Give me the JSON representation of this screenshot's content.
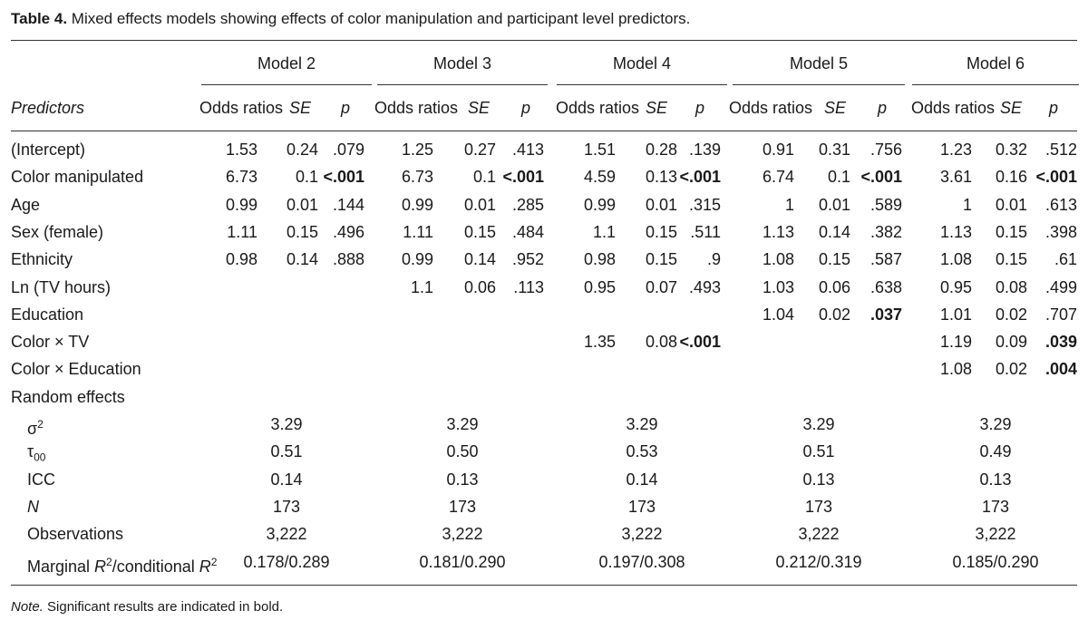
{
  "caption": {
    "label": "Table 4.",
    "text": "Mixed effects models showing effects of color manipulation and participant level predictors."
  },
  "models": [
    "Model 2",
    "Model 3",
    "Model 4",
    "Model 5",
    "Model 6"
  ],
  "predictors_header": "Predictors",
  "subheaders": [
    "Odds ratios",
    "SE",
    "p"
  ],
  "rows": [
    {
      "label": "(Intercept)",
      "values": [
        [
          "1.53",
          "0.24",
          ".079"
        ],
        [
          "1.25",
          "0.27",
          ".413"
        ],
        [
          "1.51",
          "0.28",
          ".139"
        ],
        [
          "0.91",
          "0.31",
          ".756"
        ],
        [
          "1.23",
          "0.32",
          ".512"
        ]
      ],
      "sig": [
        false,
        false,
        false,
        false,
        false
      ]
    },
    {
      "label": "Color manipulated",
      "values": [
        [
          "6.73",
          "0.1",
          "<.001"
        ],
        [
          "6.73",
          "0.1",
          "<.001"
        ],
        [
          "4.59",
          "0.13",
          "<.001"
        ],
        [
          "6.74",
          "0.1",
          "<.001"
        ],
        [
          "3.61",
          "0.16",
          "<.001"
        ]
      ],
      "sig": [
        true,
        true,
        true,
        true,
        true
      ]
    },
    {
      "label": "Age",
      "values": [
        [
          "0.99",
          "0.01",
          ".144"
        ],
        [
          "0.99",
          "0.01",
          ".285"
        ],
        [
          "0.99",
          "0.01",
          ".315"
        ],
        [
          "1",
          "0.01",
          ".589"
        ],
        [
          "1",
          "0.01",
          ".613"
        ]
      ],
      "sig": [
        false,
        false,
        false,
        false,
        false
      ]
    },
    {
      "label": "Sex (female)",
      "values": [
        [
          "1.11",
          "0.15",
          ".496"
        ],
        [
          "1.11",
          "0.15",
          ".484"
        ],
        [
          "1.1",
          "0.15",
          ".511"
        ],
        [
          "1.13",
          "0.14",
          ".382"
        ],
        [
          "1.13",
          "0.15",
          ".398"
        ]
      ],
      "sig": [
        false,
        false,
        false,
        false,
        false
      ]
    },
    {
      "label": "Ethnicity",
      "values": [
        [
          "0.98",
          "0.14",
          ".888"
        ],
        [
          "0.99",
          "0.14",
          ".952"
        ],
        [
          "0.98",
          "0.15",
          ".9"
        ],
        [
          "1.08",
          "0.15",
          ".587"
        ],
        [
          "1.08",
          "0.15",
          ".61"
        ]
      ],
      "sig": [
        false,
        false,
        false,
        false,
        false
      ]
    },
    {
      "label": "Ln (TV hours)",
      "values": [
        null,
        [
          "1.1",
          "0.06",
          ".113"
        ],
        [
          "0.95",
          "0.07",
          ".493"
        ],
        [
          "1.03",
          "0.06",
          ".638"
        ],
        [
          "0.95",
          "0.08",
          ".499"
        ]
      ],
      "sig": [
        false,
        false,
        false,
        false,
        false
      ]
    },
    {
      "label": "Education",
      "values": [
        null,
        null,
        null,
        [
          "1.04",
          "0.02",
          ".037"
        ],
        [
          "1.01",
          "0.02",
          ".707"
        ]
      ],
      "sig": [
        false,
        false,
        false,
        true,
        false
      ]
    },
    {
      "label": "Color × TV",
      "values": [
        null,
        null,
        [
          "1.35",
          "0.08",
          "<.001"
        ],
        null,
        [
          "1.19",
          "0.09",
          ".039"
        ]
      ],
      "sig": [
        false,
        false,
        true,
        false,
        true
      ]
    },
    {
      "label": "Color × Education",
      "values": [
        null,
        null,
        null,
        null,
        [
          "1.08",
          "0.02",
          ".004"
        ]
      ],
      "sig": [
        false,
        false,
        false,
        false,
        true
      ]
    }
  ],
  "random_effects_header": "Random effects",
  "random_rows": [
    {
      "label": "σ",
      "sup": "2",
      "sub": "",
      "italic": false,
      "values": [
        "3.29",
        "3.29",
        "3.29",
        "3.29",
        "3.29"
      ]
    },
    {
      "label": "τ",
      "sup": "",
      "sub": "00",
      "italic": false,
      "values": [
        "0.51",
        "0.50",
        "0.53",
        "0.51",
        "0.49"
      ]
    },
    {
      "label": "ICC",
      "sup": "",
      "sub": "",
      "italic": false,
      "values": [
        "0.14",
        "0.13",
        "0.14",
        "0.13",
        "0.13"
      ]
    },
    {
      "label": "N",
      "sup": "",
      "sub": "",
      "italic": true,
      "values": [
        "173",
        "173",
        "173",
        "173",
        "173"
      ]
    },
    {
      "label": "Observations",
      "sup": "",
      "sub": "",
      "italic": false,
      "values": [
        "3,222",
        "3,222",
        "3,222",
        "3,222",
        "3,222"
      ]
    }
  ],
  "r2_row": {
    "part1": "Marginal ",
    "R": "R",
    "sup": "2",
    "part2": "/conditional ",
    "values": [
      "0.178/0.289",
      "0.181/0.290",
      "0.197/0.308",
      "0.212/0.319",
      "0.185/0.290"
    ]
  },
  "note": {
    "label": "Note.",
    "text": " Significant results are indicated in bold."
  }
}
